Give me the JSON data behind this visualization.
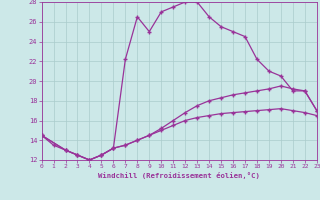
{
  "xlabel": "Windchill (Refroidissement éolien,°C)",
  "background_color": "#cce8e8",
  "grid_color": "#aacccc",
  "line_color": "#993399",
  "xlim": [
    0,
    23
  ],
  "ylim": [
    12,
    28
  ],
  "ytick_vals": [
    12,
    14,
    16,
    18,
    20,
    22,
    24,
    26,
    28
  ],
  "xtick_vals": [
    0,
    1,
    2,
    3,
    4,
    5,
    6,
    7,
    8,
    9,
    10,
    11,
    12,
    13,
    14,
    15,
    16,
    17,
    18,
    19,
    20,
    21,
    22,
    23
  ],
  "line1_x": [
    0,
    1,
    2,
    3,
    4,
    5,
    6,
    7,
    8,
    9,
    10,
    11,
    12,
    13,
    14,
    15,
    16,
    17,
    18,
    19,
    20,
    21,
    22,
    23
  ],
  "line1_y": [
    14.5,
    13.5,
    13.0,
    12.5,
    12.0,
    12.5,
    13.2,
    22.2,
    26.5,
    25.0,
    27.0,
    27.5,
    28.0,
    28.0,
    26.5,
    25.5,
    25.0,
    24.5,
    22.2,
    21.0,
    20.5,
    19.0,
    19.0,
    17.0
  ],
  "line2_x": [
    0,
    2,
    3,
    4,
    5,
    6,
    7,
    8,
    9,
    10,
    11,
    12,
    13,
    14,
    15,
    16,
    17,
    18,
    19,
    20,
    21,
    22,
    23
  ],
  "line2_y": [
    14.5,
    13.0,
    12.5,
    12.0,
    12.5,
    13.2,
    13.5,
    14.0,
    14.5,
    15.2,
    16.0,
    16.8,
    17.5,
    18.0,
    18.3,
    18.6,
    18.8,
    19.0,
    19.2,
    19.5,
    19.2,
    19.0,
    17.0
  ],
  "line3_x": [
    0,
    2,
    3,
    4,
    5,
    6,
    7,
    8,
    9,
    10,
    11,
    12,
    13,
    14,
    15,
    16,
    17,
    18,
    19,
    20,
    21,
    22,
    23
  ],
  "line3_y": [
    14.5,
    13.0,
    12.5,
    12.0,
    12.5,
    13.2,
    13.5,
    14.0,
    14.5,
    15.0,
    15.5,
    16.0,
    16.3,
    16.5,
    16.7,
    16.8,
    16.9,
    17.0,
    17.1,
    17.2,
    17.0,
    16.8,
    16.5
  ]
}
